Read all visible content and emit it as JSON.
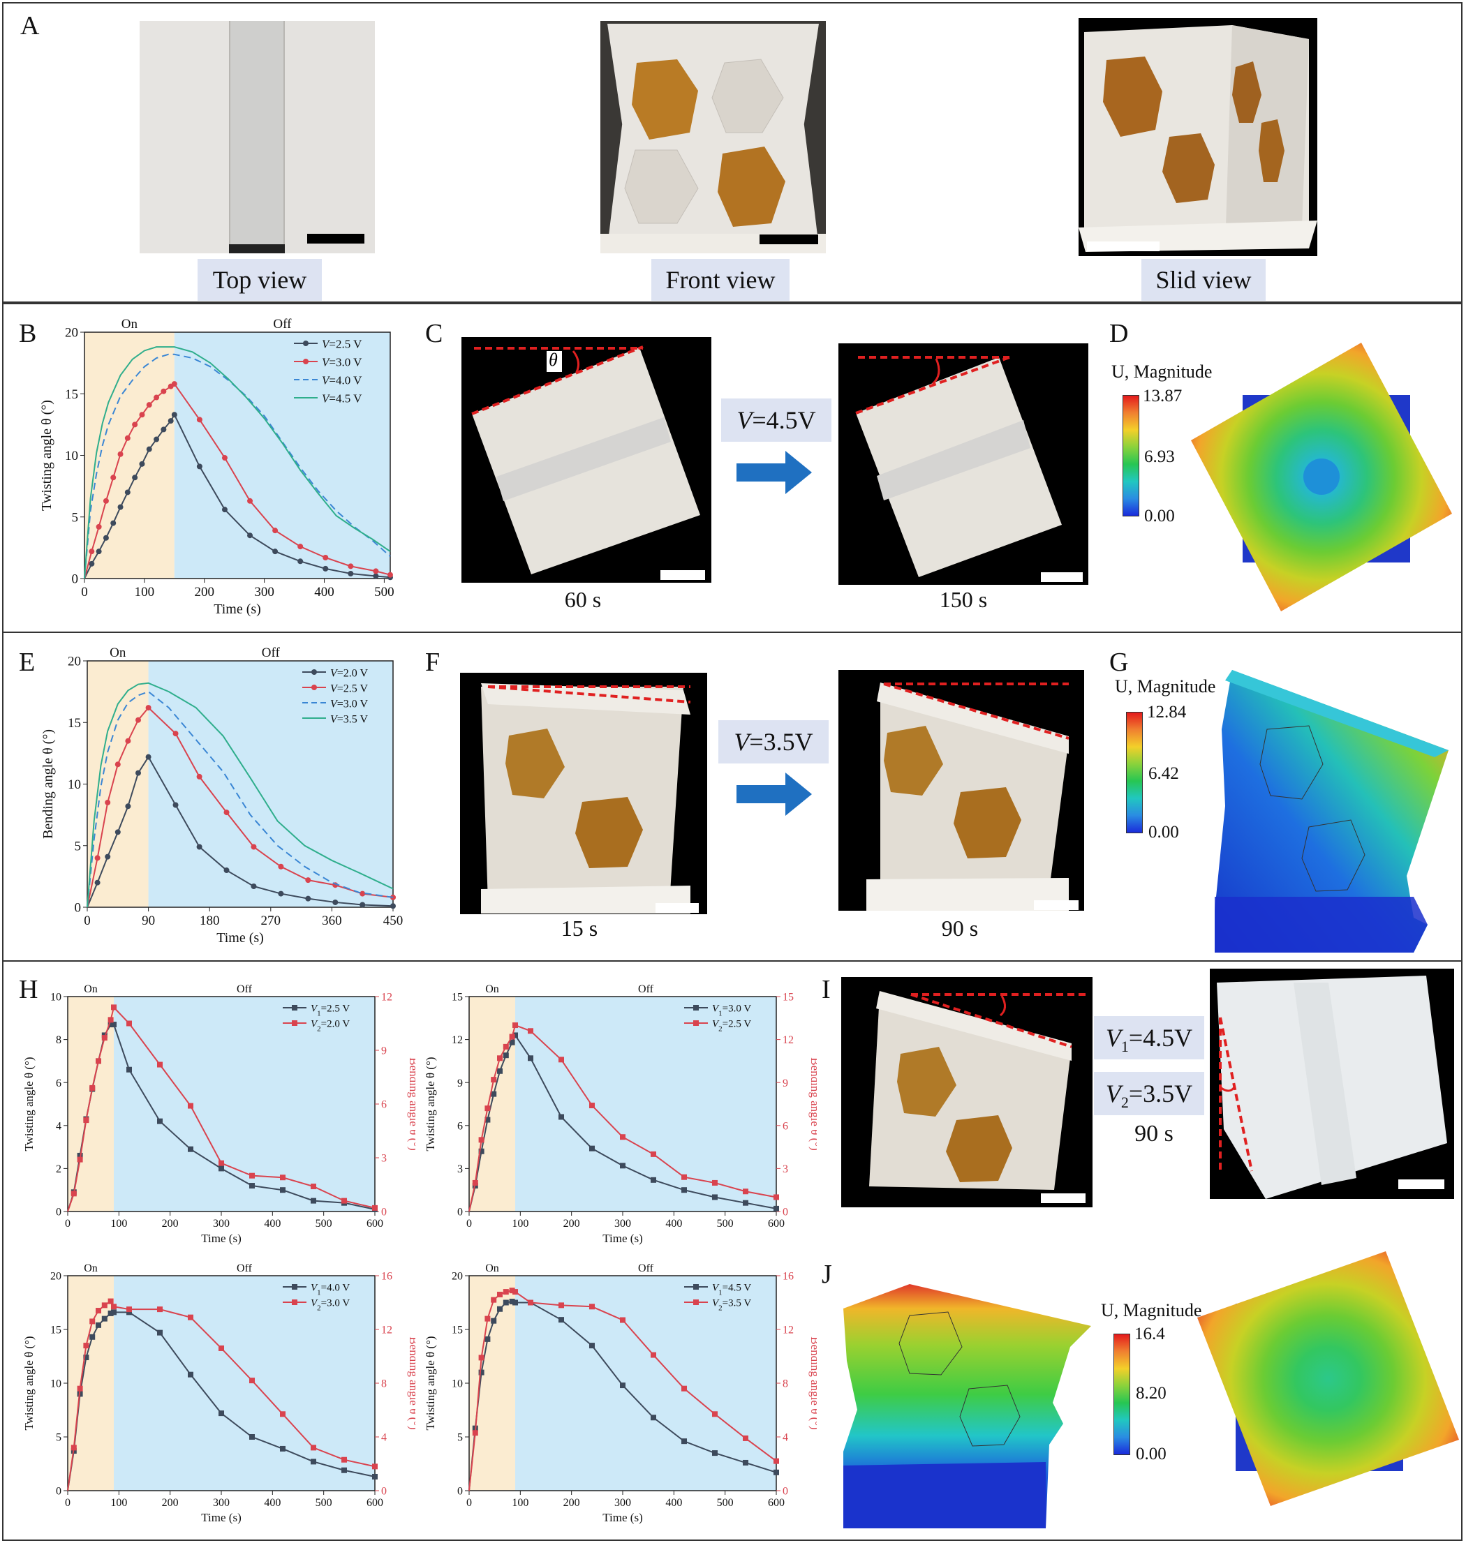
{
  "panels": {
    "A": "A",
    "B": "B",
    "C": "C",
    "D": "D",
    "E": "E",
    "F": "F",
    "G": "G",
    "H": "H",
    "I": "I",
    "J": "J"
  },
  "panel_a": {
    "captions": [
      "Top view",
      "Front view",
      "Slid view"
    ]
  },
  "panel_c": {
    "voltage_italic": "V",
    "voltage_rest": "=4.5V",
    "theta": "θ",
    "time_left": "60 s",
    "time_right": "150 s"
  },
  "panel_d": {
    "title": "U, Magnitude",
    "max": "13.87",
    "mid": "6.93",
    "min": "0.00"
  },
  "panel_f": {
    "voltage_italic": "V",
    "voltage_rest": "=3.5V",
    "time_left": "15 s",
    "time_right": "90 s"
  },
  "panel_g": {
    "title": "U, Magnitude",
    "max": "12.84",
    "mid": "6.42",
    "min": "0.00"
  },
  "panel_i": {
    "v1_italic": "V",
    "v1_sub": "1",
    "v1_rest": "=4.5V",
    "v2_italic": "V",
    "v2_sub": "2",
    "v2_rest": "=3.5V",
    "time": "90 s"
  },
  "panel_j": {
    "title": "U, Magnitude",
    "max": "16.4",
    "mid": "8.20",
    "min": "0.00"
  },
  "colors": {
    "on_region": "#fbecd1",
    "off_region": "#cde9f8",
    "caption_bg": "#dde3f2",
    "arrow": "#1f70c1",
    "series_dark": "#3d4a5c",
    "series_red": "#d9434e",
    "series_blue": "#3a86d4",
    "series_green": "#2fae8c"
  },
  "chart_data": [
    {
      "id": "B",
      "type": "line",
      "xlabel": "Time (s)",
      "ylabel": "Twisting angle θ (°)",
      "xlim": [
        0,
        510
      ],
      "ylim": [
        0,
        20
      ],
      "xticks": [
        0,
        100,
        200,
        300,
        400,
        500
      ],
      "yticks": [
        0,
        5,
        10,
        15,
        20
      ],
      "on_off": {
        "on_label": "On",
        "off_label": "Off",
        "switch_x": 150
      },
      "series": [
        {
          "name": "V=2.5 V",
          "style": "dark-marker",
          "x": [
            0,
            12,
            24,
            36,
            48,
            60,
            72,
            84,
            96,
            108,
            120,
            132,
            144,
            150,
            192,
            234,
            276,
            318,
            360,
            402,
            444,
            486,
            510
          ],
          "y": [
            0,
            1.2,
            2.2,
            3.3,
            4.5,
            5.8,
            7.0,
            8.2,
            9.3,
            10.5,
            11.3,
            12.1,
            12.8,
            13.3,
            9.1,
            5.6,
            3.5,
            2.2,
            1.4,
            0.8,
            0.4,
            0.2,
            0.1
          ]
        },
        {
          "name": "V=3.0 V",
          "style": "red-marker",
          "x": [
            0,
            12,
            24,
            36,
            48,
            60,
            72,
            84,
            96,
            108,
            120,
            132,
            144,
            150,
            192,
            234,
            276,
            318,
            360,
            402,
            444,
            486,
            510
          ],
          "y": [
            0,
            2.2,
            4.2,
            6.3,
            8.2,
            10.1,
            11.4,
            12.5,
            13.3,
            14.1,
            14.7,
            15.2,
            15.6,
            15.8,
            12.9,
            9.8,
            6.3,
            3.9,
            2.6,
            1.7,
            1.0,
            0.6,
            0.3
          ]
        },
        {
          "name": "V=4.0 V",
          "style": "blue-dash",
          "x": [
            0,
            10,
            20,
            30,
            40,
            60,
            80,
            100,
            120,
            140,
            150,
            180,
            210,
            240,
            270,
            300,
            330,
            360,
            390,
            420,
            450,
            480,
            510
          ],
          "y": [
            0,
            5.5,
            8.5,
            10.8,
            12.5,
            14.8,
            16.1,
            17.2,
            17.9,
            18.2,
            18.2,
            17.9,
            17.2,
            16.1,
            14.8,
            13.2,
            11.1,
            9.0,
            7.1,
            5.5,
            4.2,
            3.1,
            1.8
          ]
        },
        {
          "name": "V=4.5 V",
          "style": "green-line",
          "x": [
            0,
            10,
            20,
            30,
            40,
            60,
            80,
            100,
            120,
            140,
            150,
            180,
            210,
            240,
            270,
            300,
            330,
            360,
            390,
            420,
            450,
            480,
            510
          ],
          "y": [
            0,
            6.5,
            10.2,
            12.6,
            14.3,
            16.5,
            17.8,
            18.5,
            18.8,
            18.8,
            18.8,
            18.4,
            17.5,
            16.2,
            14.7,
            13.0,
            11.0,
            8.8,
            6.9,
            5.1,
            4.1,
            3.2,
            2.2
          ]
        }
      ]
    },
    {
      "id": "E",
      "type": "line",
      "xlabel": "Time (s)",
      "ylabel": "Bending angle θ (°)",
      "xlim": [
        0,
        450
      ],
      "ylim": [
        0,
        20
      ],
      "xticks": [
        0,
        90,
        180,
        270,
        360,
        450
      ],
      "yticks": [
        0,
        5,
        10,
        15,
        20
      ],
      "on_off": {
        "on_label": "On",
        "off_label": "Off",
        "switch_x": 90
      },
      "series": [
        {
          "name": "V=2.0 V",
          "style": "dark-marker",
          "x": [
            0,
            15,
            30,
            45,
            60,
            75,
            90,
            130,
            165,
            205,
            245,
            285,
            325,
            365,
            405,
            450
          ],
          "y": [
            0,
            2.0,
            4.1,
            6.1,
            8.2,
            10.9,
            12.2,
            8.3,
            4.9,
            3.0,
            1.7,
            1.1,
            0.7,
            0.4,
            0.2,
            0.1
          ]
        },
        {
          "name": "V=2.5 V",
          "style": "red-marker",
          "x": [
            0,
            15,
            30,
            45,
            60,
            75,
            90,
            130,
            165,
            205,
            245,
            285,
            325,
            365,
            405,
            450
          ],
          "y": [
            0,
            4.0,
            8.5,
            11.6,
            13.5,
            15.2,
            16.2,
            14.1,
            10.6,
            7.7,
            4.9,
            3.3,
            2.2,
            1.8,
            1.1,
            0.8
          ]
        },
        {
          "name": "V=3.0 V",
          "style": "blue-dash",
          "x": [
            0,
            10,
            20,
            30,
            45,
            60,
            75,
            90,
            120,
            160,
            200,
            240,
            280,
            320,
            360,
            400,
            450
          ],
          "y": [
            0,
            5.5,
            9.8,
            12.6,
            15.2,
            16.6,
            17.2,
            17.5,
            16.2,
            13.6,
            11.0,
            7.5,
            5.0,
            3.3,
            2.0,
            1.2,
            0.8
          ]
        },
        {
          "name": "V=3.5 V",
          "style": "green-line",
          "x": [
            0,
            10,
            20,
            30,
            45,
            60,
            75,
            90,
            120,
            160,
            200,
            240,
            280,
            320,
            360,
            400,
            450
          ],
          "y": [
            0,
            7.0,
            11.5,
            14.3,
            16.5,
            17.6,
            18.1,
            18.2,
            17.5,
            16.2,
            13.9,
            10.5,
            7.0,
            5.0,
            3.8,
            2.8,
            1.5
          ]
        }
      ]
    },
    {
      "id": "H1",
      "type": "line",
      "xlabel": "Time (s)",
      "ylabel": "Twisting angle θ (°)",
      "y2label": "Bending angle θ (°)",
      "xlim": [
        0,
        600
      ],
      "ylim": [
        0,
        10
      ],
      "y2lim": [
        0,
        12
      ],
      "xticks": [
        0,
        100,
        200,
        300,
        400,
        500,
        600
      ],
      "yticks": [
        0,
        2,
        4,
        6,
        8,
        10
      ],
      "y2ticks": [
        0,
        3,
        6,
        9,
        12
      ],
      "on_off": {
        "on_label": "On",
        "off_label": "Off",
        "switch_x": 90
      },
      "series": [
        {
          "name_italic": "V",
          "name_sub": "1",
          "name_rest": "=2.5 V",
          "axis": "left",
          "style": "dark-square",
          "x": [
            0,
            12,
            24,
            36,
            48,
            60,
            72,
            84,
            90,
            120,
            180,
            240,
            300,
            360,
            420,
            480,
            540,
            600
          ],
          "y": [
            0,
            0.9,
            2.6,
            4.3,
            5.7,
            7.0,
            8.2,
            8.7,
            8.7,
            6.6,
            4.2,
            2.9,
            2.0,
            1.2,
            1.0,
            0.5,
            0.4,
            0.1
          ]
        },
        {
          "name_italic": "V",
          "name_sub": "2",
          "name_rest": "=2.0 V",
          "axis": "right",
          "style": "red-square",
          "x": [
            0,
            12,
            24,
            36,
            48,
            60,
            72,
            84,
            90,
            120,
            180,
            240,
            300,
            360,
            420,
            480,
            540,
            600
          ],
          "y": [
            0,
            1.0,
            2.9,
            5.1,
            6.9,
            8.4,
            9.7,
            10.7,
            11.4,
            10.5,
            8.2,
            5.9,
            2.7,
            2.0,
            1.9,
            1.4,
            0.6,
            0.2
          ]
        }
      ]
    },
    {
      "id": "H2",
      "type": "line",
      "xlabel": "Time (s)",
      "ylabel": "Twisting angle θ (°)",
      "y2label": "Bending angle θ (°)",
      "xlim": [
        0,
        600
      ],
      "ylim": [
        0,
        15
      ],
      "y2lim": [
        0,
        15
      ],
      "xticks": [
        0,
        100,
        200,
        300,
        400,
        500,
        600
      ],
      "yticks": [
        0,
        3,
        6,
        9,
        12,
        15
      ],
      "y2ticks": [
        0,
        3,
        6,
        9,
        12,
        15
      ],
      "on_off": {
        "on_label": "On",
        "off_label": "Off",
        "switch_x": 90
      },
      "series": [
        {
          "name_italic": "V",
          "name_sub": "1",
          "name_rest": "=3.0 V",
          "axis": "left",
          "style": "dark-square",
          "x": [
            0,
            12,
            24,
            36,
            48,
            60,
            72,
            84,
            90,
            120,
            180,
            240,
            300,
            360,
            420,
            480,
            540,
            600
          ],
          "y": [
            0,
            1.8,
            4.2,
            6.4,
            8.2,
            9.8,
            10.9,
            11.8,
            12.3,
            10.7,
            6.6,
            4.4,
            3.2,
            2.2,
            1.5,
            1.0,
            0.6,
            0.2
          ]
        },
        {
          "name_italic": "V",
          "name_sub": "2",
          "name_rest": "=2.5 V",
          "axis": "right",
          "style": "red-square",
          "x": [
            0,
            12,
            24,
            36,
            48,
            60,
            72,
            84,
            90,
            120,
            180,
            240,
            300,
            360,
            420,
            480,
            540,
            600
          ],
          "y": [
            0,
            2.0,
            5.0,
            7.2,
            9.2,
            10.7,
            11.5,
            12.2,
            13.0,
            12.6,
            10.6,
            7.4,
            5.2,
            4.0,
            2.4,
            2.0,
            1.4,
            1.0
          ]
        }
      ]
    },
    {
      "id": "H3",
      "type": "line",
      "xlabel": "Time (s)",
      "ylabel": "Twisting angle θ (°)",
      "y2label": "Bending angle θ (°)",
      "xlim": [
        0,
        600
      ],
      "ylim": [
        0,
        20
      ],
      "y2lim": [
        0,
        16
      ],
      "xticks": [
        0,
        100,
        200,
        300,
        400,
        500,
        600
      ],
      "yticks": [
        0,
        5,
        10,
        15,
        20
      ],
      "y2ticks": [
        0,
        4,
        8,
        12,
        16
      ],
      "on_off": {
        "on_label": "On",
        "off_label": "Off",
        "switch_x": 90
      },
      "series": [
        {
          "name_italic": "V",
          "name_sub": "1",
          "name_rest": "=4.0 V",
          "axis": "left",
          "style": "dark-square",
          "x": [
            0,
            12,
            24,
            36,
            48,
            60,
            72,
            84,
            90,
            120,
            180,
            240,
            300,
            360,
            420,
            480,
            540,
            600
          ],
          "y": [
            0,
            3.7,
            9.0,
            12.4,
            14.3,
            15.4,
            16.0,
            16.5,
            16.6,
            16.6,
            14.7,
            10.8,
            7.2,
            5.0,
            3.9,
            2.7,
            1.9,
            1.3
          ]
        },
        {
          "name_italic": "V",
          "name_sub": "2",
          "name_rest": "=3.0 V",
          "axis": "right",
          "style": "red-square",
          "x": [
            0,
            12,
            24,
            36,
            48,
            60,
            72,
            84,
            90,
            120,
            180,
            240,
            300,
            360,
            420,
            480,
            540,
            600
          ],
          "y": [
            0,
            3.2,
            7.6,
            10.8,
            12.6,
            13.4,
            13.8,
            14.1,
            13.7,
            13.5,
            13.5,
            12.9,
            10.6,
            8.2,
            5.7,
            3.2,
            2.3,
            1.8
          ]
        }
      ]
    },
    {
      "id": "H4",
      "type": "line",
      "xlabel": "Time (s)",
      "ylabel": "Twisting angle θ (°)",
      "y2label": "Bending angle θ (°)",
      "xlim": [
        0,
        600
      ],
      "ylim": [
        0,
        20
      ],
      "y2lim": [
        0,
        16
      ],
      "xticks": [
        0,
        100,
        200,
        300,
        400,
        500,
        600
      ],
      "yticks": [
        0,
        5,
        10,
        15,
        20
      ],
      "y2ticks": [
        0,
        4,
        8,
        12,
        16
      ],
      "on_off": {
        "on_label": "On",
        "off_label": "Off",
        "switch_x": 90
      },
      "series": [
        {
          "name_italic": "V",
          "name_sub": "1",
          "name_rest": "=4.5 V",
          "axis": "left",
          "style": "dark-square",
          "x": [
            0,
            12,
            24,
            36,
            48,
            60,
            72,
            84,
            90,
            120,
            180,
            240,
            300,
            360,
            420,
            480,
            540,
            600
          ],
          "y": [
            0,
            5.8,
            11.0,
            14.1,
            15.8,
            16.9,
            17.5,
            17.6,
            17.5,
            17.5,
            15.9,
            13.5,
            9.8,
            6.8,
            4.6,
            3.5,
            2.6,
            1.7
          ]
        },
        {
          "name_italic": "V",
          "name_sub": "2",
          "name_rest": "=3.5 V",
          "axis": "right",
          "style": "red-square",
          "x": [
            0,
            12,
            24,
            36,
            48,
            60,
            72,
            84,
            90,
            120,
            180,
            240,
            300,
            360,
            420,
            480,
            540,
            600
          ],
          "y": [
            0,
            4.3,
            9.9,
            12.8,
            14.2,
            14.6,
            14.8,
            14.9,
            14.8,
            14.0,
            13.8,
            13.7,
            12.7,
            10.1,
            7.6,
            5.7,
            3.9,
            2.2
          ]
        }
      ]
    }
  ]
}
